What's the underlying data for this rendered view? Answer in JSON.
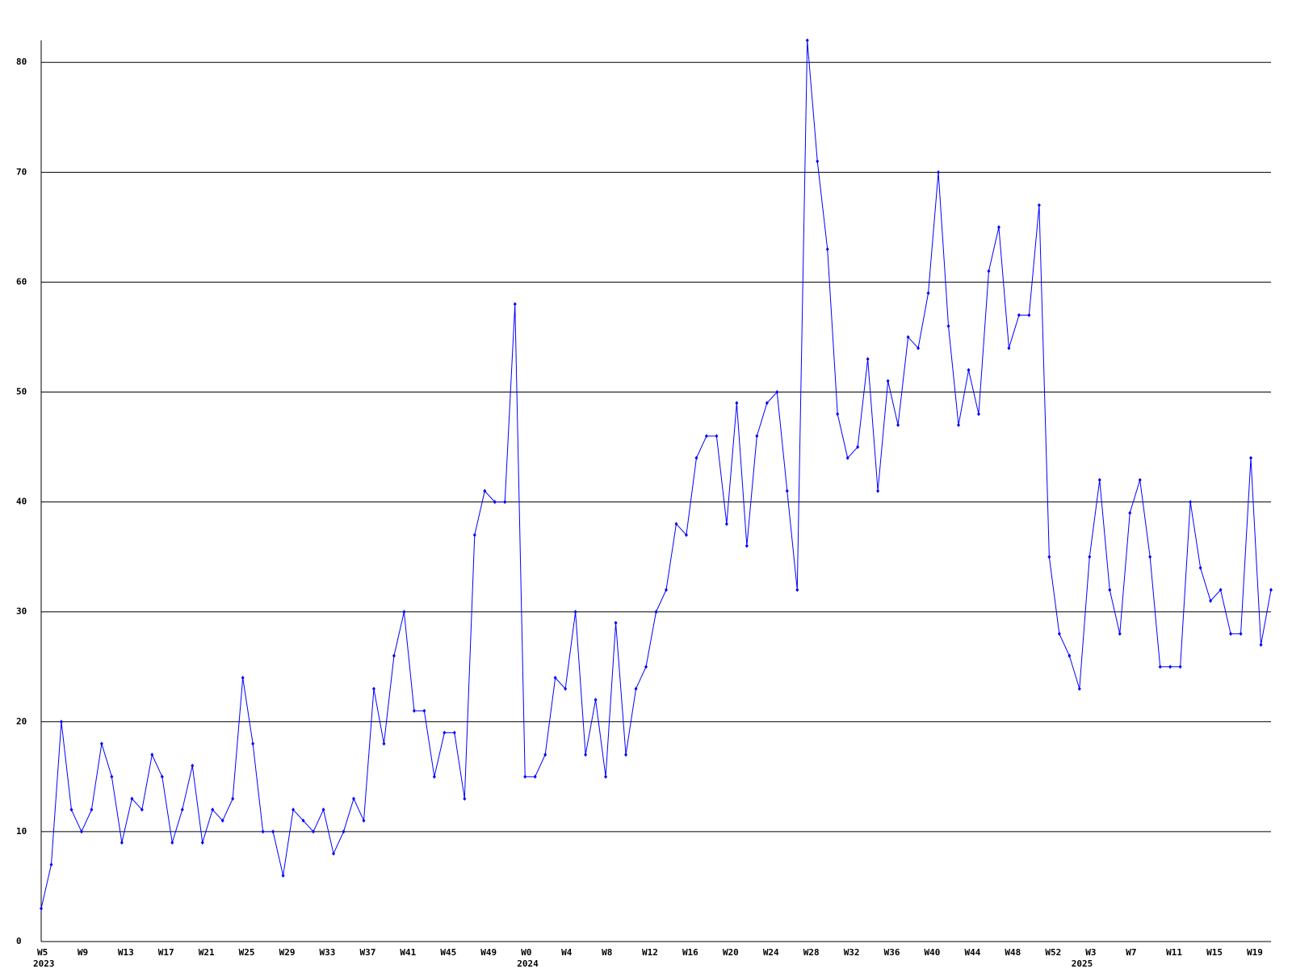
{
  "chart_data": {
    "type": "line",
    "categories": [
      "W5",
      null,
      null,
      null,
      "W9",
      null,
      null,
      null,
      "W13",
      null,
      null,
      null,
      "W17",
      null,
      null,
      null,
      "W21",
      null,
      null,
      null,
      "W25",
      null,
      null,
      null,
      "W29",
      null,
      null,
      null,
      "W33",
      null,
      null,
      null,
      "W37",
      null,
      null,
      null,
      "W41",
      null,
      null,
      null,
      "W45",
      null,
      null,
      null,
      "W49",
      null,
      null,
      null,
      "W0",
      null,
      null,
      null,
      "W4",
      null,
      null,
      null,
      "W8",
      null,
      null,
      null,
      "W12",
      null,
      null,
      null,
      "W16",
      null,
      null,
      null,
      "W20",
      null,
      null,
      null,
      "W24",
      null,
      null,
      null,
      "W28",
      null,
      null,
      null,
      "W32",
      null,
      null,
      null,
      "W36",
      null,
      null,
      null,
      "W40",
      null,
      null,
      null,
      "W44",
      null,
      null,
      null,
      "W48",
      null,
      null,
      null,
      "W52",
      null,
      null,
      null,
      "W3",
      null,
      null,
      null,
      "W7",
      null,
      null,
      null,
      "W11",
      null,
      null,
      null,
      "W15",
      null,
      null,
      null,
      "W19",
      null,
      null
    ],
    "year_labels": [
      "2023",
      null,
      null,
      null,
      null,
      null,
      null,
      null,
      null,
      null,
      null,
      null,
      null,
      null,
      null,
      null,
      null,
      null,
      null,
      null,
      null,
      null,
      null,
      null,
      null,
      null,
      null,
      null,
      null,
      null,
      null,
      null,
      null,
      null,
      null,
      null,
      null,
      null,
      null,
      null,
      null,
      null,
      null,
      null,
      null,
      null,
      null,
      null,
      "2024",
      null,
      null,
      null,
      null,
      null,
      null,
      null,
      null,
      null,
      null,
      null,
      null,
      null,
      null,
      null,
      null,
      null,
      null,
      null,
      null,
      null,
      null,
      null,
      null,
      null,
      null,
      null,
      null,
      null,
      null,
      null,
      null,
      null,
      null,
      null,
      null,
      null,
      null,
      null,
      null,
      null,
      null,
      null,
      null,
      null,
      null,
      null,
      null,
      null,
      null,
      null,
      null,
      null,
      null,
      "2025",
      null,
      null,
      null,
      null,
      null,
      null,
      null,
      null,
      null,
      null,
      null,
      null,
      null,
      null,
      null,
      null,
      null,
      null,
      null,
      null,
      null
    ],
    "series": [
      {
        "color": "#0000ff",
        "values": [
          3,
          7,
          20,
          12,
          10,
          12,
          18,
          15,
          9,
          13,
          12,
          17,
          15,
          9,
          12,
          16,
          9,
          12,
          11,
          13,
          24,
          18,
          10,
          10,
          6,
          12,
          11,
          10,
          12,
          8,
          10,
          13,
          11,
          23,
          18,
          26,
          30,
          21,
          21,
          15,
          19,
          19,
          13,
          37,
          41,
          40,
          40,
          58,
          15,
          15,
          17,
          24,
          23,
          30,
          17,
          22,
          15,
          29,
          17,
          23,
          25,
          30,
          32,
          38,
          37,
          44,
          46,
          46,
          38,
          49,
          36,
          46,
          49,
          50,
          41,
          32,
          82,
          71,
          63,
          48,
          44,
          45,
          53,
          41,
          51,
          47,
          55,
          54,
          59,
          70,
          56,
          47,
          52,
          48,
          61,
          65,
          54,
          57,
          57,
          67,
          35,
          28,
          26,
          23,
          35,
          42,
          32,
          28,
          39,
          42,
          35,
          25,
          25,
          25,
          40,
          34,
          31,
          32,
          28,
          28,
          44,
          27,
          32
        ]
      }
    ],
    "ylim": [
      0,
      82
    ],
    "yticks": [
      0,
      10,
      20,
      30,
      40,
      50,
      60,
      70,
      80
    ],
    "grid": true
  }
}
